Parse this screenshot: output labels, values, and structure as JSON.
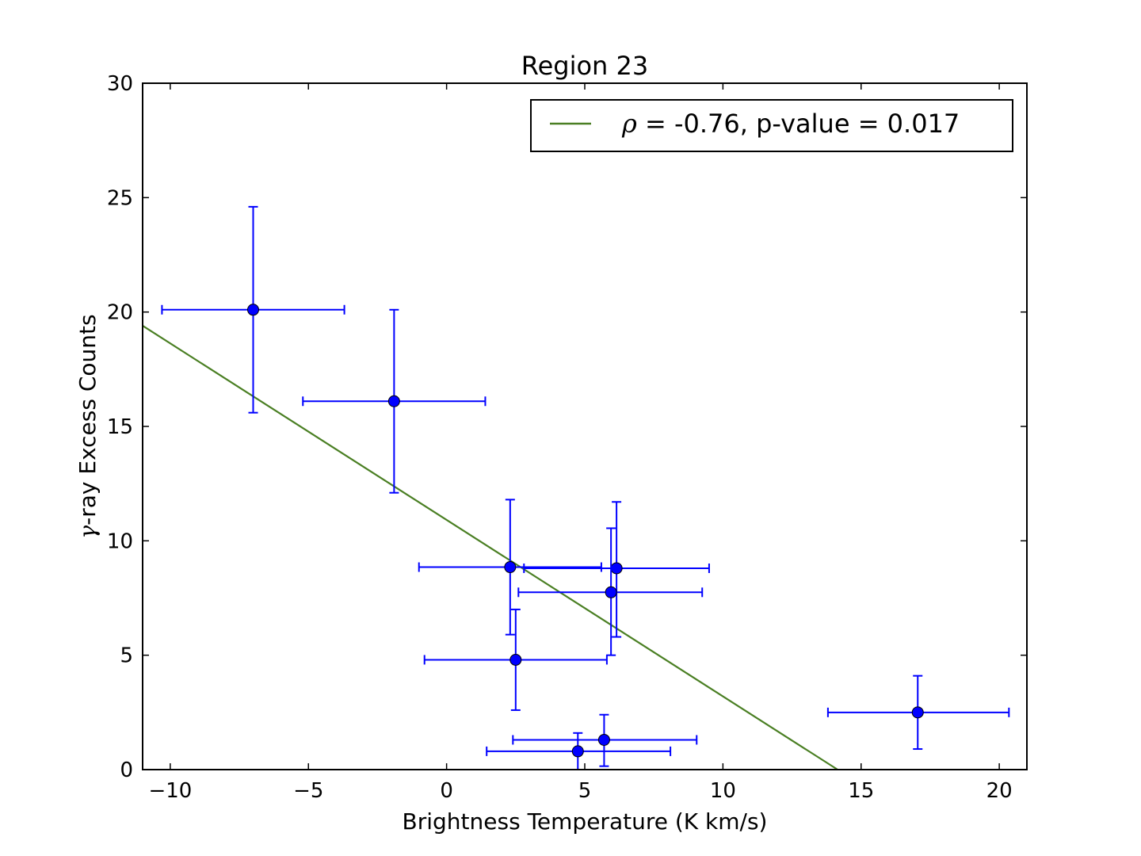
{
  "chart_data": {
    "type": "scatter",
    "title": "Region 23",
    "xlabel": "Brightness Temperature (K km/s)",
    "ylabel_symbol": "γ",
    "ylabel_text": "-ray Excess Counts",
    "xlim": [
      -11,
      21
    ],
    "ylim": [
      0,
      30
    ],
    "xticks": [
      -10,
      -5,
      0,
      5,
      10,
      15,
      20
    ],
    "yticks": [
      0,
      5,
      10,
      15,
      20,
      25,
      30
    ],
    "xtick_labels": [
      "−10",
      "−5",
      "0",
      "5",
      "10",
      "15",
      "20"
    ],
    "ytick_labels": [
      "0",
      "5",
      "10",
      "15",
      "20",
      "25",
      "30"
    ],
    "grid": false,
    "legend_position": "top-right",
    "legend_symbol": "ρ",
    "legend_text": " = -0.76, p-value = 0.017",
    "colors": {
      "points": "#0000ff",
      "fit": "#4a7f23",
      "axes": "#000000"
    },
    "points": [
      {
        "x": -7.0,
        "y": 20.1,
        "xerr_low": -10.3,
        "xerr_high": -3.7,
        "yerr_low": 15.6,
        "yerr_high": 24.6
      },
      {
        "x": -1.9,
        "y": 16.1,
        "xerr_low": -5.2,
        "xerr_high": 1.4,
        "yerr_low": 12.1,
        "yerr_high": 20.1
      },
      {
        "x": 2.3,
        "y": 8.85,
        "xerr_low": -1.0,
        "xerr_high": 5.6,
        "yerr_low": 5.9,
        "yerr_high": 11.8
      },
      {
        "x": 6.15,
        "y": 8.8,
        "xerr_low": 2.8,
        "xerr_high": 9.5,
        "yerr_low": 5.8,
        "yerr_high": 11.7
      },
      {
        "x": 5.95,
        "y": 7.75,
        "xerr_low": 2.6,
        "xerr_high": 9.25,
        "yerr_low": 5.0,
        "yerr_high": 10.55
      },
      {
        "x": 2.5,
        "y": 4.8,
        "xerr_low": -0.8,
        "xerr_high": 5.8,
        "yerr_low": 2.6,
        "yerr_high": 7.0
      },
      {
        "x": 5.7,
        "y": 1.3,
        "xerr_low": 2.4,
        "xerr_high": 9.05,
        "yerr_low": 0.15,
        "yerr_high": 2.4
      },
      {
        "x": 4.75,
        "y": 0.8,
        "xerr_low": 1.45,
        "xerr_high": 8.1,
        "yerr_low": 0.0,
        "yerr_high": 1.6
      },
      {
        "x": 17.05,
        "y": 2.5,
        "xerr_low": 13.8,
        "xerr_high": 20.35,
        "yerr_low": 0.9,
        "yerr_high": 4.1
      }
    ],
    "fit_line": {
      "x": [
        -11,
        14.15
      ],
      "y": [
        19.4,
        0
      ]
    }
  }
}
